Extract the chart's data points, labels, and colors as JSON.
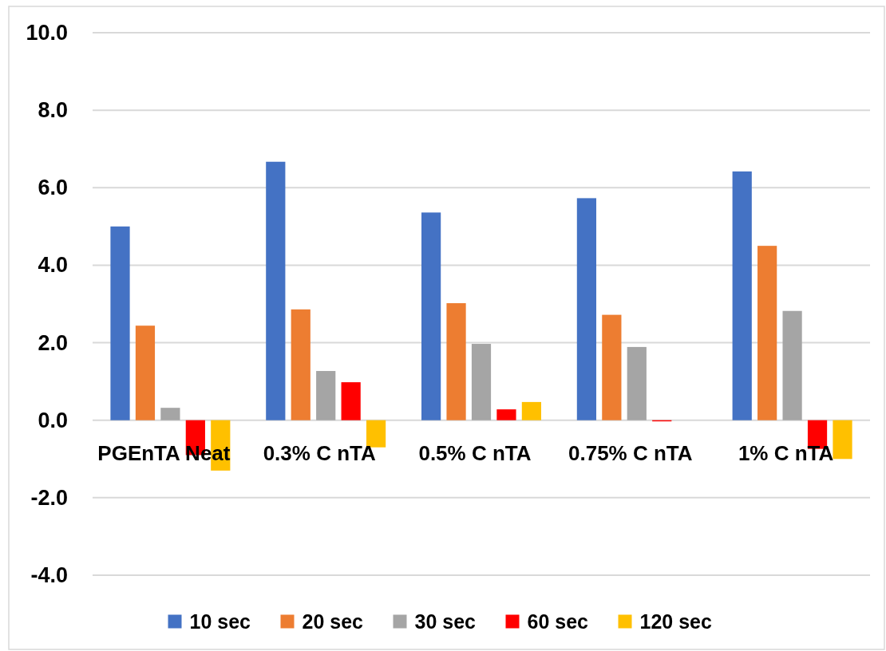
{
  "chart_data": {
    "type": "bar",
    "categories": [
      "PGEnTA Neat",
      "0.3% C nTA",
      "0.5% C nTA",
      "0.75% C nTA",
      "1% C nTA"
    ],
    "series": [
      {
        "name": "10 sec",
        "color": "#4472c4",
        "values": [
          5.0,
          6.67,
          5.36,
          5.73,
          6.42
        ]
      },
      {
        "name": "20 sec",
        "color": "#ed7d31",
        "values": [
          2.44,
          2.86,
          3.02,
          2.72,
          4.5
        ]
      },
      {
        "name": "30 sec",
        "color": "#a5a5a5",
        "values": [
          0.32,
          1.27,
          1.97,
          1.89,
          2.82
        ]
      },
      {
        "name": "60 sec",
        "color": "#ff0000",
        "values": [
          -0.9,
          0.98,
          0.28,
          -0.03,
          -0.74
        ]
      },
      {
        "name": "120 sec",
        "color": "#ffc000",
        "values": [
          -1.3,
          -0.7,
          0.47,
          0,
          -1.0
        ]
      }
    ],
    "ylim": [
      -4,
      10
    ],
    "yticks": [
      {
        "value": -4,
        "label": "-4.0"
      },
      {
        "value": -2,
        "label": "-2.0"
      },
      {
        "value": 0,
        "label": "0.0"
      },
      {
        "value": 2,
        "label": "2.0"
      },
      {
        "value": 4,
        "label": "4.0"
      },
      {
        "value": 6,
        "label": "6.0"
      },
      {
        "value": 8,
        "label": "8.0"
      },
      {
        "value": 10,
        "label": "10.0"
      }
    ],
    "grid": "y",
    "legend": "bottom"
  }
}
